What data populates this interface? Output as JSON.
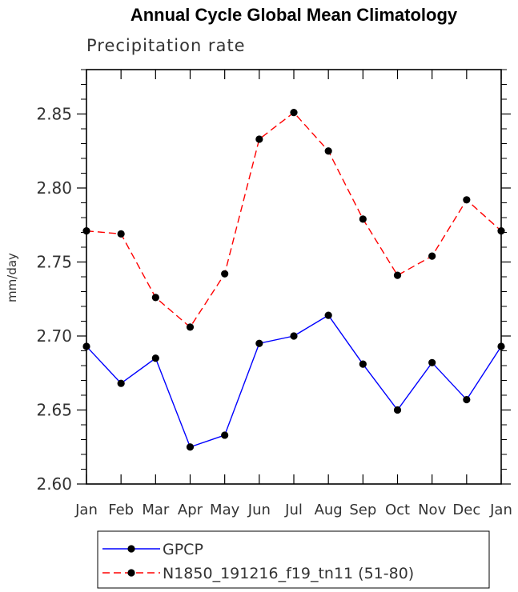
{
  "chart_data": {
    "type": "line",
    "title": "Annual Cycle Global Mean Climatology",
    "subtitle": "Precipitation rate",
    "xlabel": "",
    "ylabel": "mm/day",
    "categories": [
      "Jan",
      "Feb",
      "Mar",
      "Apr",
      "May",
      "Jun",
      "Jul",
      "Aug",
      "Sep",
      "Oct",
      "Nov",
      "Dec",
      "Jan"
    ],
    "ylim": [
      2.6,
      2.88
    ],
    "yticks": [
      "2.60",
      "2.65",
      "2.70",
      "2.75",
      "2.80",
      "2.85"
    ],
    "grid": false,
    "legend_position": "bottom",
    "series": [
      {
        "name": "GPCP",
        "color": "#0000ff",
        "line_style": "solid",
        "marker_color": "#000000",
        "values": [
          2.693,
          2.668,
          2.685,
          2.625,
          2.633,
          2.695,
          2.7,
          2.714,
          2.681,
          2.65,
          2.682,
          2.657,
          2.693
        ]
      },
      {
        "name": "N1850_191216_f19_tn11 (51-80)",
        "color": "#ff0000",
        "line_style": "dashed",
        "marker_color": "#000000",
        "values": [
          2.771,
          2.769,
          2.726,
          2.706,
          2.742,
          2.833,
          2.851,
          2.825,
          2.779,
          2.741,
          2.754,
          2.792,
          2.771
        ]
      }
    ]
  }
}
